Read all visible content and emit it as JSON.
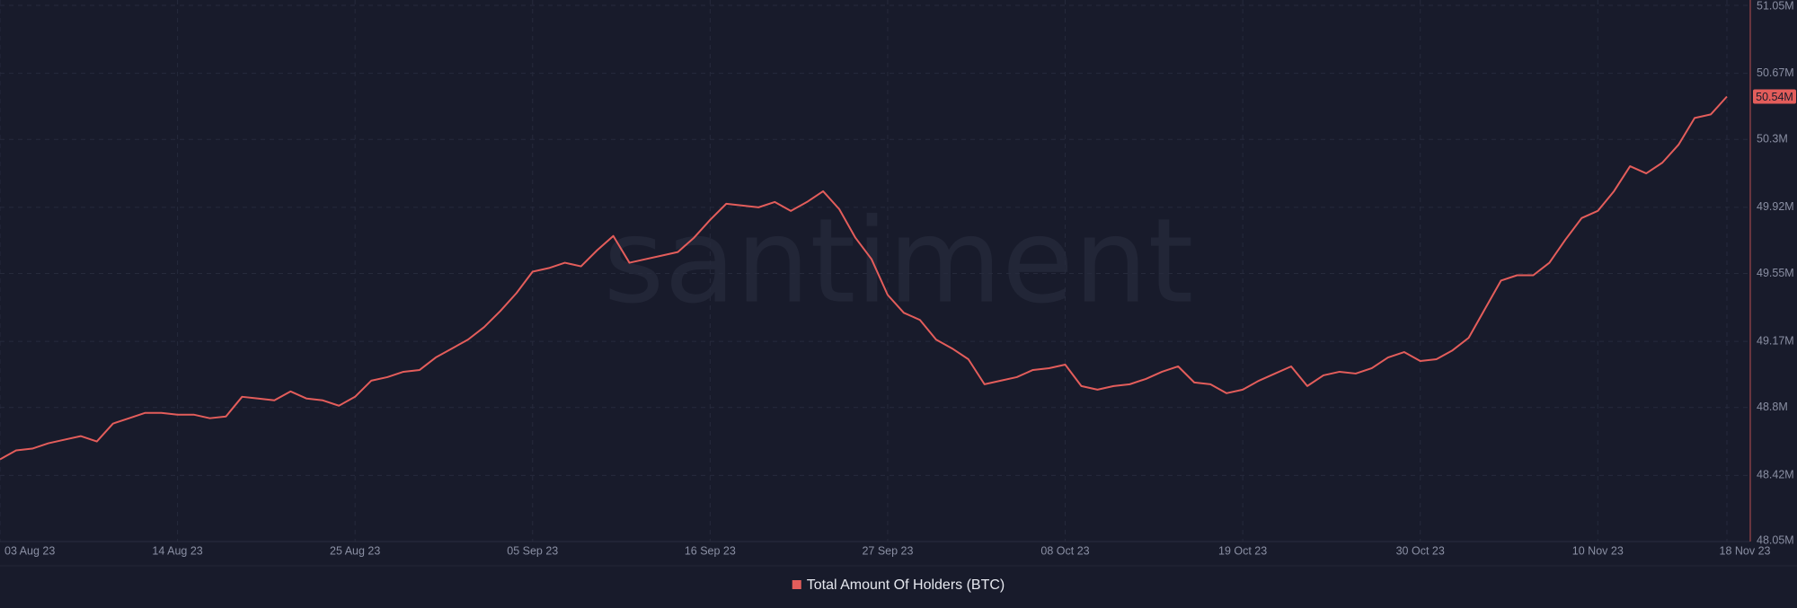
{
  "chart_data": {
    "type": "line",
    "watermark": "santiment",
    "categories": [
      "03 Aug 23",
      null,
      null,
      null,
      null,
      null,
      null,
      null,
      null,
      null,
      null,
      "14 Aug 23",
      null,
      null,
      null,
      null,
      null,
      null,
      null,
      null,
      null,
      null,
      "25 Aug 23",
      null,
      null,
      null,
      null,
      null,
      null,
      null,
      null,
      null,
      null,
      "05 Sep 23",
      null,
      null,
      null,
      null,
      null,
      null,
      null,
      null,
      null,
      null,
      "16 Sep 23",
      null,
      null,
      null,
      null,
      null,
      null,
      null,
      null,
      null,
      null,
      "27 Sep 23",
      null,
      null,
      null,
      null,
      null,
      null,
      null,
      null,
      null,
      null,
      "08 Oct 23",
      null,
      null,
      null,
      null,
      null,
      null,
      null,
      null,
      null,
      null,
      "19 Oct 23",
      null,
      null,
      null,
      null,
      null,
      null,
      null,
      null,
      null,
      null,
      "30 Oct 23",
      null,
      null,
      null,
      null,
      null,
      null,
      null,
      null,
      null,
      null,
      "10 Nov 23",
      null,
      null,
      null,
      null,
      null,
      null,
      null,
      "18 Nov 23"
    ],
    "series": [
      {
        "name": "Total Amount Of Holders (BTC)",
        "color": "#e35d5b",
        "values": [
          48.51,
          48.56,
          48.57,
          48.6,
          48.62,
          48.64,
          48.61,
          48.71,
          48.74,
          48.77,
          48.77,
          48.76,
          48.76,
          48.74,
          48.75,
          48.86,
          48.85,
          48.84,
          48.89,
          48.85,
          48.84,
          48.81,
          48.86,
          48.95,
          48.97,
          49.0,
          49.01,
          49.08,
          49.13,
          49.18,
          49.25,
          49.34,
          49.44,
          49.56,
          49.58,
          49.61,
          49.59,
          49.68,
          49.76,
          49.61,
          49.63,
          49.65,
          49.67,
          49.75,
          49.85,
          49.94,
          49.93,
          49.92,
          49.95,
          49.9,
          49.95,
          50.01,
          49.91,
          49.75,
          49.63,
          49.43,
          49.33,
          49.29,
          49.18,
          49.13,
          49.07,
          48.93,
          48.95,
          48.97,
          49.01,
          49.02,
          49.04,
          48.92,
          48.9,
          48.92,
          48.93,
          48.96,
          49.0,
          49.03,
          48.94,
          48.93,
          48.88,
          48.9,
          48.95,
          48.99,
          49.03,
          48.92,
          48.98,
          49.0,
          48.99,
          49.02,
          49.08,
          49.11,
          49.06,
          49.07,
          49.12,
          49.19,
          49.35,
          49.51,
          49.54,
          49.54,
          49.61,
          49.74,
          49.86,
          49.9,
          50.01,
          50.15,
          50.11,
          50.17,
          50.27,
          50.42,
          50.44,
          50.54
        ]
      }
    ],
    "current_value": {
      "value": 50.54,
      "label": "50.54M"
    },
    "ylim": [
      48.05,
      51.05
    ],
    "yticks": [
      {
        "value": 48.05,
        "label": "48.05M"
      },
      {
        "value": 48.42,
        "label": "48.42M"
      },
      {
        "value": 48.8,
        "label": "48.8M"
      },
      {
        "value": 49.17,
        "label": "49.17M"
      },
      {
        "value": 49.55,
        "label": "49.55M"
      },
      {
        "value": 49.92,
        "label": "49.92M"
      },
      {
        "value": 50.3,
        "label": "50.3M"
      },
      {
        "value": 50.67,
        "label": "50.67M"
      },
      {
        "value": 51.05,
        "label": "51.05M"
      }
    ],
    "grid": true
  }
}
